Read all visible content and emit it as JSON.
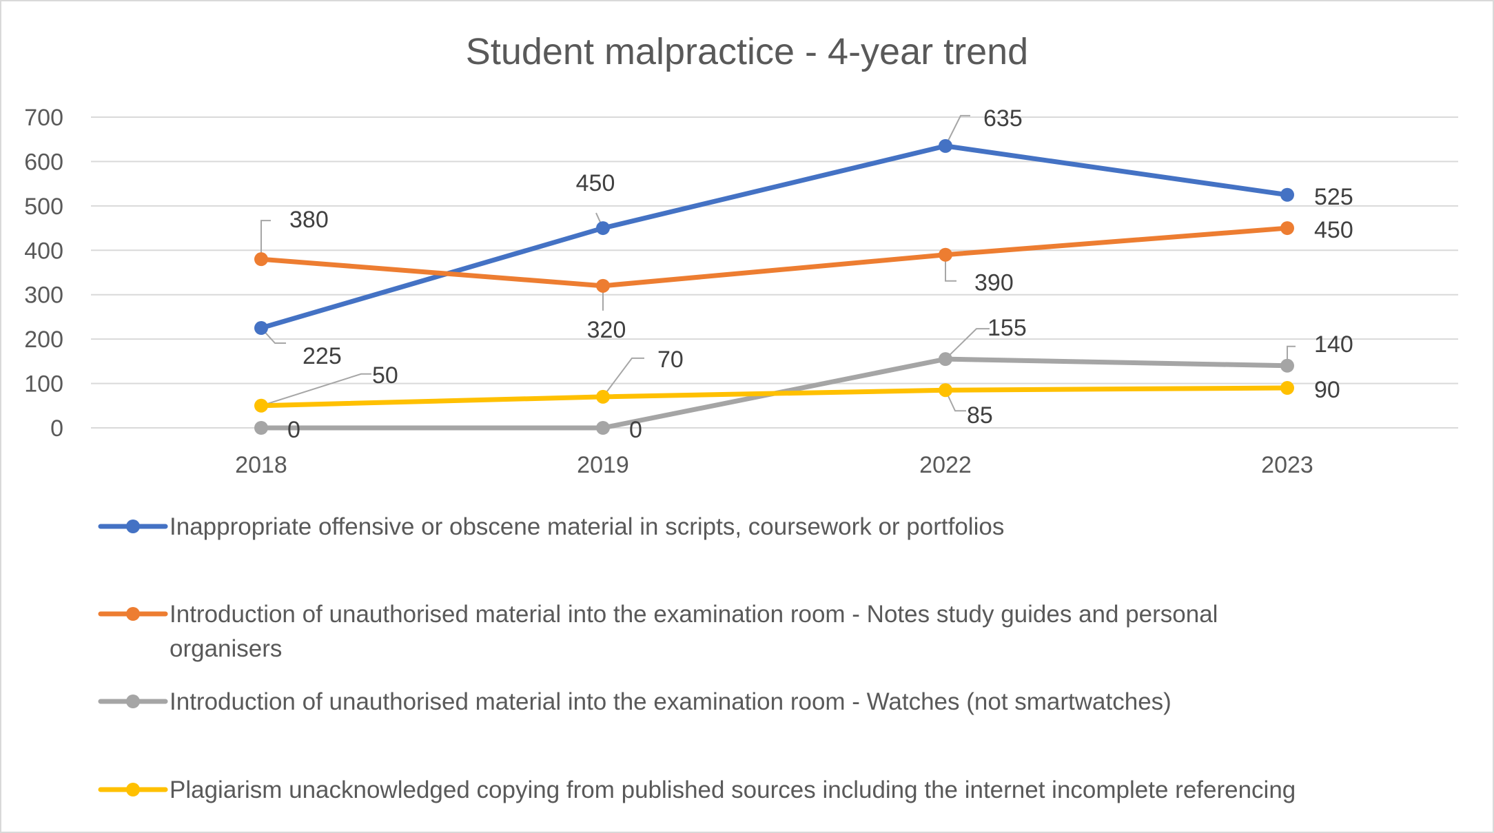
{
  "chart_data": {
    "type": "line",
    "title": "Student malpractice - 4-year trend",
    "xlabel": "",
    "ylabel": "",
    "categories": [
      "2018",
      "2019",
      "2022",
      "2023"
    ],
    "ylim": [
      0,
      700
    ],
    "yticks": [
      0,
      100,
      200,
      300,
      400,
      500,
      600,
      700
    ],
    "grid": true,
    "legend_position": "bottom",
    "series": [
      {
        "name": "Inappropriate offensive or obscene material in scripts, coursework or portfolios",
        "values": [
          225,
          450,
          635,
          525
        ],
        "color": "#4472C4"
      },
      {
        "name": "Introduction of unauthorised material into the examination room - Notes study guides and personal organisers",
        "values": [
          380,
          320,
          390,
          450
        ],
        "color": "#ED7D31"
      },
      {
        "name": "Introduction of unauthorised material into the examination room - Watches (not smartwatches)",
        "values": [
          0,
          0,
          155,
          140
        ],
        "color": "#A5A5A5"
      },
      {
        "name": "Plagiarism unacknowledged copying from published sources including the internet incomplete referencing",
        "values": [
          50,
          70,
          85,
          90
        ],
        "color": "#FFC000"
      }
    ]
  }
}
